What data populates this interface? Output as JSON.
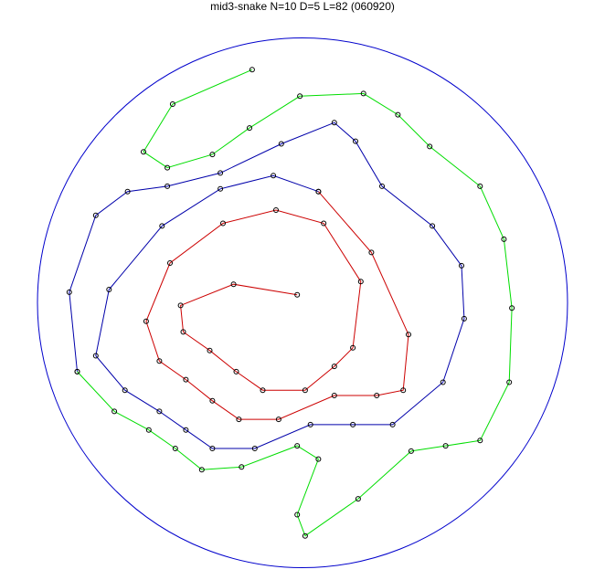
{
  "chart_data": {
    "type": "line",
    "title": "mid3-snake N=10 D=5 L=82 (060920)",
    "xlabel": "",
    "ylabel": "",
    "axes_visible": false,
    "grid": false,
    "coordinate_note": "unit-circle coordinates, boundary circle radius 1 centered at origin",
    "boundary": {
      "shape": "circle",
      "radius": 1,
      "color": "#0000cc"
    },
    "marker": "open-circle",
    "marker_color": "#000000",
    "series": [
      {
        "color": "#cc0000",
        "points": [
          [
            -0.02,
            0.03
          ],
          [
            -0.26,
            0.07
          ],
          [
            -0.46,
            -0.01
          ],
          [
            -0.45,
            -0.11
          ],
          [
            -0.35,
            -0.18
          ],
          [
            -0.25,
            -0.26
          ],
          [
            -0.15,
            -0.33
          ],
          [
            0.01,
            -0.33
          ],
          [
            0.12,
            -0.24
          ],
          [
            0.19,
            -0.17
          ],
          [
            0.22,
            0.08
          ],
          [
            0.08,
            0.3
          ],
          [
            -0.1,
            0.35
          ],
          [
            -0.3,
            0.3
          ],
          [
            -0.5,
            0.15
          ],
          [
            -0.59,
            -0.07
          ],
          [
            -0.54,
            -0.22
          ],
          [
            -0.44,
            -0.29
          ],
          [
            -0.34,
            -0.37
          ],
          [
            -0.24,
            -0.44
          ],
          [
            -0.09,
            -0.44
          ],
          [
            0.12,
            -0.35
          ],
          [
            0.28,
            -0.35
          ],
          [
            0.38,
            -0.33
          ],
          [
            0.4,
            -0.12
          ],
          [
            0.26,
            0.19
          ],
          [
            0.06,
            0.42
          ]
        ]
      },
      {
        "color": "#0000aa",
        "points": [
          [
            0.06,
            0.42
          ],
          [
            -0.11,
            0.48
          ],
          [
            -0.31,
            0.43
          ],
          [
            -0.53,
            0.29
          ],
          [
            -0.73,
            0.05
          ],
          [
            -0.78,
            -0.2
          ],
          [
            -0.67,
            -0.33
          ],
          [
            -0.54,
            -0.41
          ],
          [
            -0.44,
            -0.48
          ],
          [
            -0.34,
            -0.55
          ],
          [
            -0.18,
            -0.55
          ],
          [
            0.03,
            -0.46
          ],
          [
            0.19,
            -0.46
          ],
          [
            0.34,
            -0.46
          ],
          [
            0.53,
            -0.3
          ],
          [
            0.61,
            -0.06
          ],
          [
            0.6,
            0.14
          ],
          [
            0.49,
            0.29
          ],
          [
            0.3,
            0.44
          ],
          [
            0.2,
            0.61
          ],
          [
            0.12,
            0.68
          ],
          [
            -0.08,
            0.6
          ],
          [
            -0.31,
            0.49
          ],
          [
            -0.51,
            0.44
          ],
          [
            -0.66,
            0.42
          ],
          [
            -0.78,
            0.33
          ],
          [
            -0.88,
            0.04
          ],
          [
            -0.85,
            -0.26
          ]
        ]
      },
      {
        "color": "#00dd00",
        "points": [
          [
            -0.85,
            -0.26
          ],
          [
            -0.71,
            -0.41
          ],
          [
            -0.58,
            -0.48
          ],
          [
            -0.48,
            -0.55
          ],
          [
            -0.38,
            -0.63
          ],
          [
            -0.23,
            -0.62
          ],
          [
            -0.02,
            -0.54
          ],
          [
            0.06,
            -0.59
          ],
          [
            -0.02,
            -0.8
          ],
          [
            0.01,
            -0.88
          ],
          [
            0.21,
            -0.74
          ],
          [
            0.41,
            -0.56
          ],
          [
            0.54,
            -0.54
          ],
          [
            0.67,
            -0.52
          ],
          [
            0.78,
            -0.3
          ],
          [
            0.79,
            -0.02
          ],
          [
            0.76,
            0.24
          ],
          [
            0.67,
            0.44
          ],
          [
            0.48,
            0.59
          ],
          [
            0.36,
            0.71
          ],
          [
            0.23,
            0.79
          ],
          [
            -0.01,
            0.78
          ],
          [
            -0.2,
            0.66
          ],
          [
            -0.34,
            0.56
          ],
          [
            -0.51,
            0.51
          ],
          [
            -0.6,
            0.57
          ],
          [
            -0.49,
            0.75
          ],
          [
            -0.19,
            0.88
          ]
        ]
      }
    ]
  }
}
